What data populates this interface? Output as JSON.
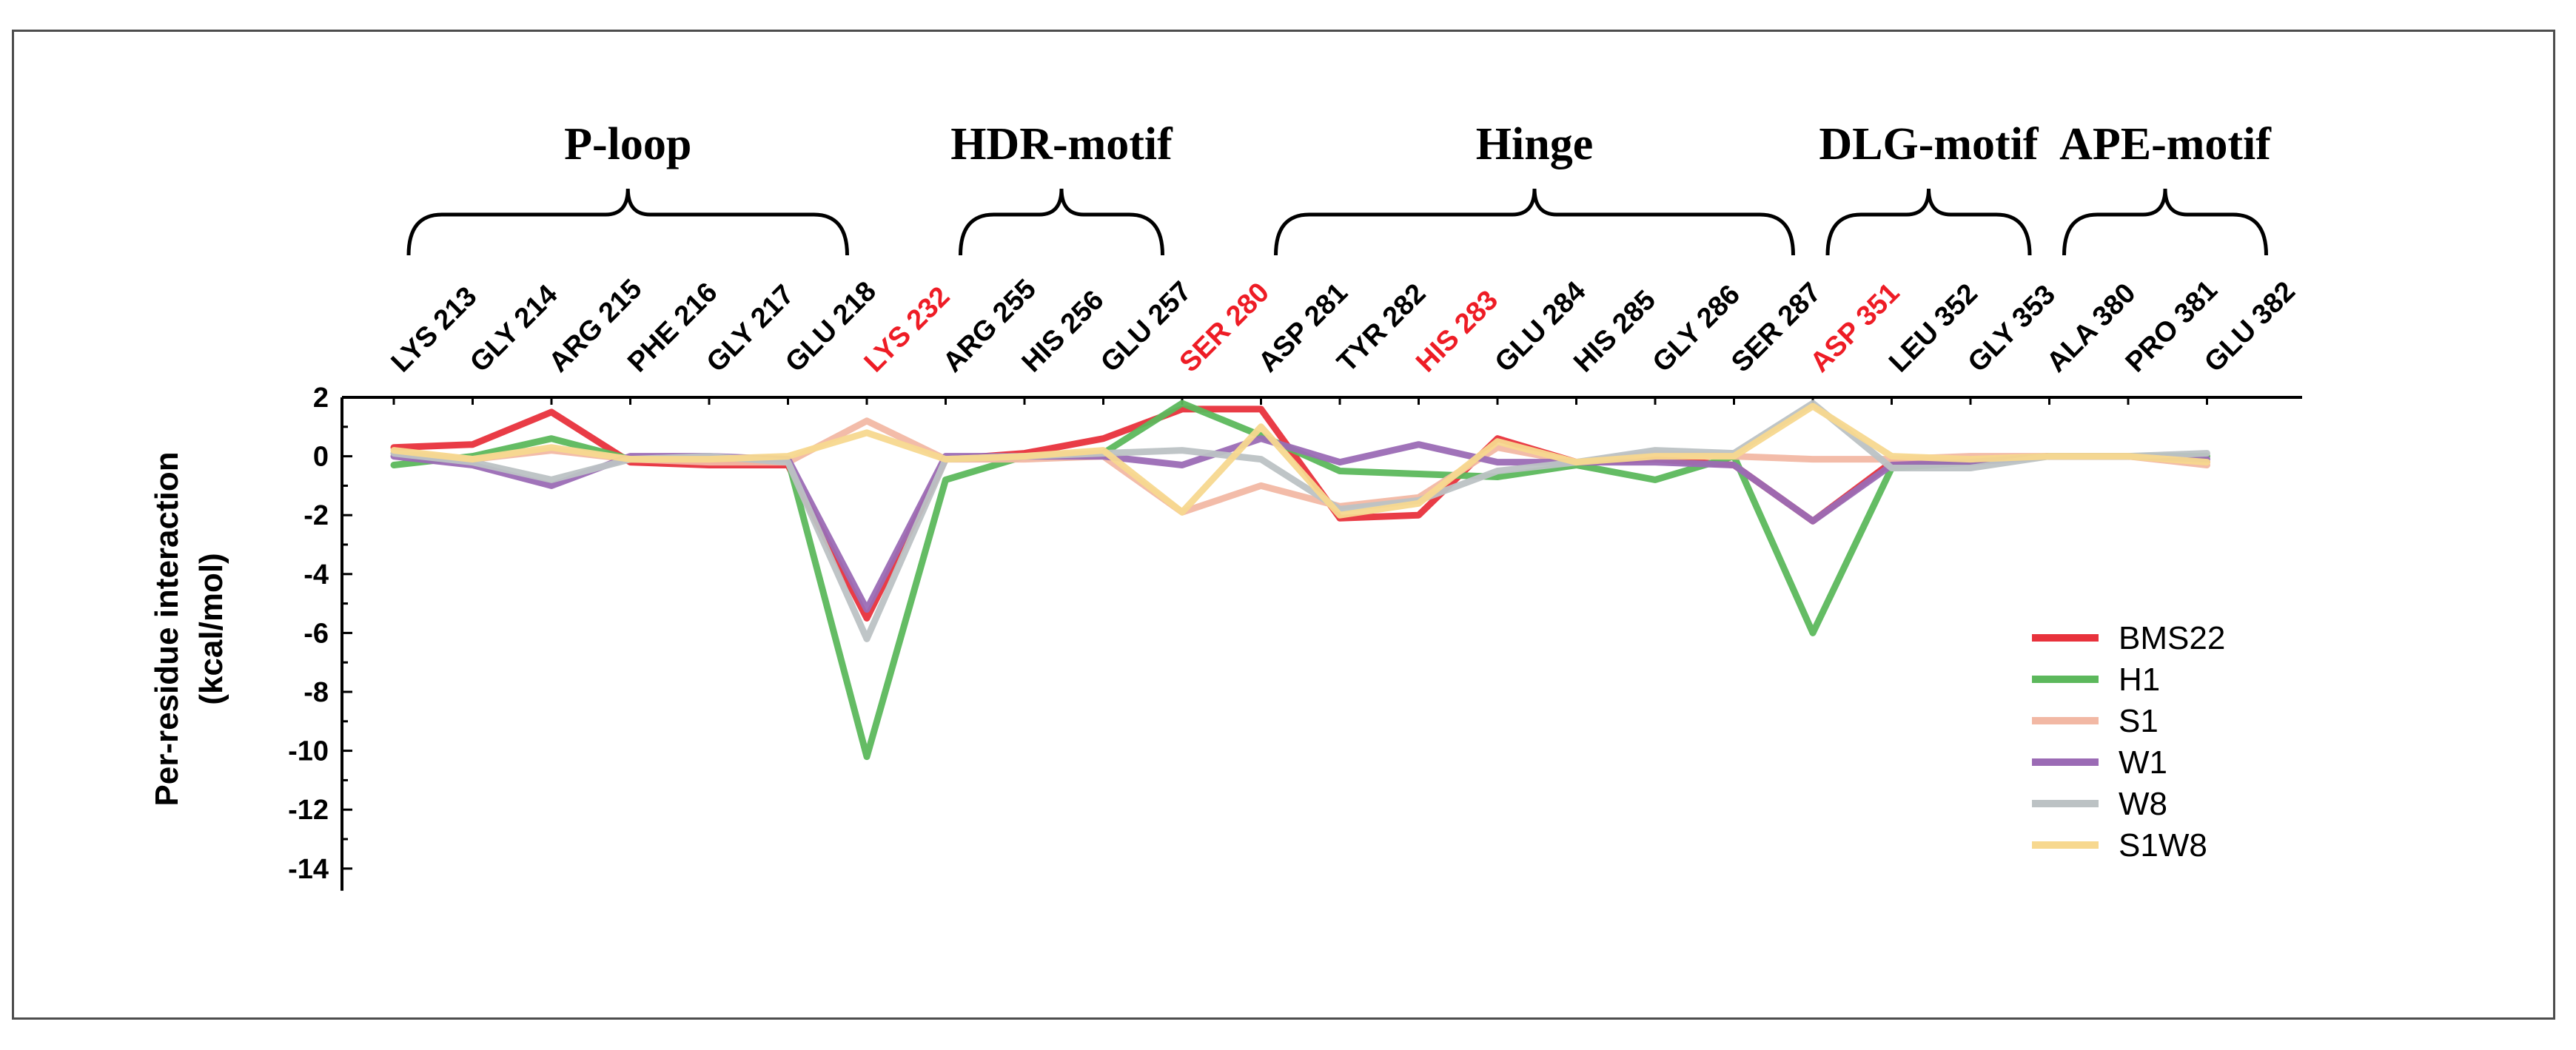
{
  "chart_data": {
    "type": "line",
    "ylabel": [
      "Per-residue interaction",
      "(kcal/mol)"
    ],
    "ylim": [
      -14,
      2
    ],
    "yticks": [
      2,
      0,
      -2,
      -4,
      -6,
      -8,
      -10,
      -12,
      -14
    ],
    "grid": false,
    "legend_position": "right",
    "categories": [
      {
        "label": "LYS 213",
        "highlight": false
      },
      {
        "label": "GLY 214",
        "highlight": false
      },
      {
        "label": "ARG 215",
        "highlight": false
      },
      {
        "label": "PHE 216",
        "highlight": false
      },
      {
        "label": "GLY 217",
        "highlight": false
      },
      {
        "label": "GLU 218",
        "highlight": false
      },
      {
        "label": "LYS 232",
        "highlight": true
      },
      {
        "label": "ARG 255",
        "highlight": false
      },
      {
        "label": "HIS 256",
        "highlight": false
      },
      {
        "label": "GLU 257",
        "highlight": false
      },
      {
        "label": "SER 280",
        "highlight": true
      },
      {
        "label": "ASP 281",
        "highlight": false
      },
      {
        "label": "TYR 282",
        "highlight": false
      },
      {
        "label": "HIS 283",
        "highlight": true
      },
      {
        "label": "GLU 284",
        "highlight": false
      },
      {
        "label": "HIS 285",
        "highlight": false
      },
      {
        "label": "GLY 286",
        "highlight": false
      },
      {
        "label": "SER 287",
        "highlight": false
      },
      {
        "label": "ASP 351",
        "highlight": true
      },
      {
        "label": "LEU 352",
        "highlight": false
      },
      {
        "label": "GLY 353",
        "highlight": false
      },
      {
        "label": "ALA 380",
        "highlight": false
      },
      {
        "label": "PRO 381",
        "highlight": false
      },
      {
        "label": "GLU 382",
        "highlight": false
      }
    ],
    "groups": [
      {
        "name": "P-loop",
        "from": 0,
        "to": 5
      },
      {
        "name": "HDR-motif",
        "from": 7,
        "to": 9
      },
      {
        "name": "Hinge",
        "from": 11,
        "to": 17
      },
      {
        "name": "DLG-motif",
        "from": 18,
        "to": 20
      },
      {
        "name": "APE-motif",
        "from": 21,
        "to": 23
      }
    ],
    "series": [
      {
        "name": "BMS22",
        "color": "#e8323c",
        "values": [
          0.3,
          0.4,
          1.5,
          -0.2,
          -0.3,
          -0.3,
          -5.5,
          -0.1,
          0.1,
          0.6,
          1.6,
          1.6,
          -2.1,
          -2.0,
          0.6,
          -0.2,
          -0.1,
          -0.3,
          -2.2,
          -0.2,
          -0.1,
          0.0,
          0.0,
          -0.2
        ]
      },
      {
        "name": "H1",
        "color": "#5cb85c",
        "values": [
          -0.3,
          0.0,
          0.6,
          -0.1,
          -0.1,
          -0.1,
          -10.2,
          -0.8,
          0.0,
          0.1,
          1.8,
          0.7,
          -0.5,
          -0.6,
          -0.7,
          -0.3,
          -0.8,
          0.0,
          -6.0,
          -0.4,
          -0.2,
          0.0,
          0.0,
          0.0
        ]
      },
      {
        "name": "S1",
        "color": "#f2b8a4",
        "values": [
          0.1,
          -0.1,
          0.2,
          -0.1,
          -0.2,
          -0.2,
          1.2,
          -0.1,
          -0.1,
          0.0,
          -1.9,
          -1.0,
          -1.7,
          -1.4,
          0.3,
          -0.2,
          0.1,
          0.0,
          -0.1,
          -0.1,
          0.0,
          0.0,
          0.0,
          -0.3
        ]
      },
      {
        "name": "W1",
        "color": "#9b6bb5",
        "values": [
          0.0,
          -0.3,
          -1.0,
          0.0,
          0.0,
          -0.1,
          -5.2,
          0.0,
          0.0,
          0.0,
          -0.3,
          0.6,
          -0.2,
          0.4,
          -0.2,
          -0.2,
          -0.2,
          -0.3,
          -2.2,
          -0.3,
          -0.2,
          0.0,
          0.0,
          -0.1
        ]
      },
      {
        "name": "W8",
        "color": "#bcc2c4",
        "values": [
          0.1,
          -0.2,
          -0.8,
          -0.1,
          0.0,
          -0.2,
          -6.2,
          -0.1,
          0.0,
          0.1,
          0.2,
          -0.1,
          -1.8,
          -1.5,
          -0.5,
          -0.2,
          0.2,
          0.1,
          1.8,
          -0.4,
          -0.4,
          0.0,
          0.0,
          0.1
        ]
      },
      {
        "name": "S1W8",
        "color": "#f7d88f",
        "values": [
          0.2,
          -0.1,
          0.3,
          -0.1,
          -0.1,
          0.0,
          0.8,
          -0.1,
          0.0,
          0.2,
          -1.9,
          1.0,
          -2.0,
          -1.6,
          0.5,
          -0.2,
          0.0,
          0.0,
          1.7,
          0.0,
          -0.1,
          0.0,
          0.0,
          -0.2
        ]
      }
    ],
    "highlight_color": "#ee1c25"
  }
}
